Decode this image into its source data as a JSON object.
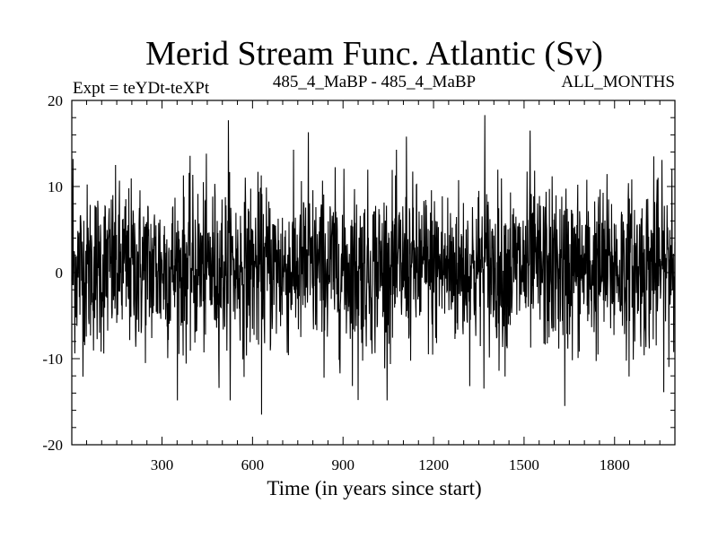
{
  "chart_data": {
    "type": "line",
    "title": "Merid Stream Func. Atlantic (Sv)",
    "subtitle_left": "Expt = teYDt-teXPt",
    "subtitle_center": "485_4_MaBP - 485_4_MaBP",
    "subtitle_right": "ALL_MONTHS",
    "xlabel": "Time (in years since start)",
    "ylabel": "",
    "xlim": [
      1,
      2000
    ],
    "ylim": [
      -20,
      20
    ],
    "xticks": [
      300,
      600,
      900,
      1200,
      1500,
      1800
    ],
    "yticks": [
      -20,
      -10,
      0,
      10,
      20
    ],
    "x_minor_step": 50,
    "y_minor_step": 2,
    "line_color": "#000000",
    "series": [
      {
        "approx_mean": 0.5,
        "approx_std": 4.8,
        "approx_min": -16.5,
        "approx_max": 18.3,
        "n_points": 2000,
        "notable_points": [
          {
            "x": 5,
            "y": 13.2
          },
          {
            "x": 520,
            "y": 17.7
          },
          {
            "x": 630,
            "y": -16.5
          },
          {
            "x": 785,
            "y": 16.3
          },
          {
            "x": 950,
            "y": -14.8
          },
          {
            "x": 1110,
            "y": 15.8
          },
          {
            "x": 1370,
            "y": 18.3
          },
          {
            "x": 1520,
            "y": 16.5
          },
          {
            "x": 1635,
            "y": -15.5
          },
          {
            "x": 1930,
            "y": 13.5
          },
          {
            "x": 1990,
            "y": 12.0
          }
        ]
      }
    ]
  }
}
